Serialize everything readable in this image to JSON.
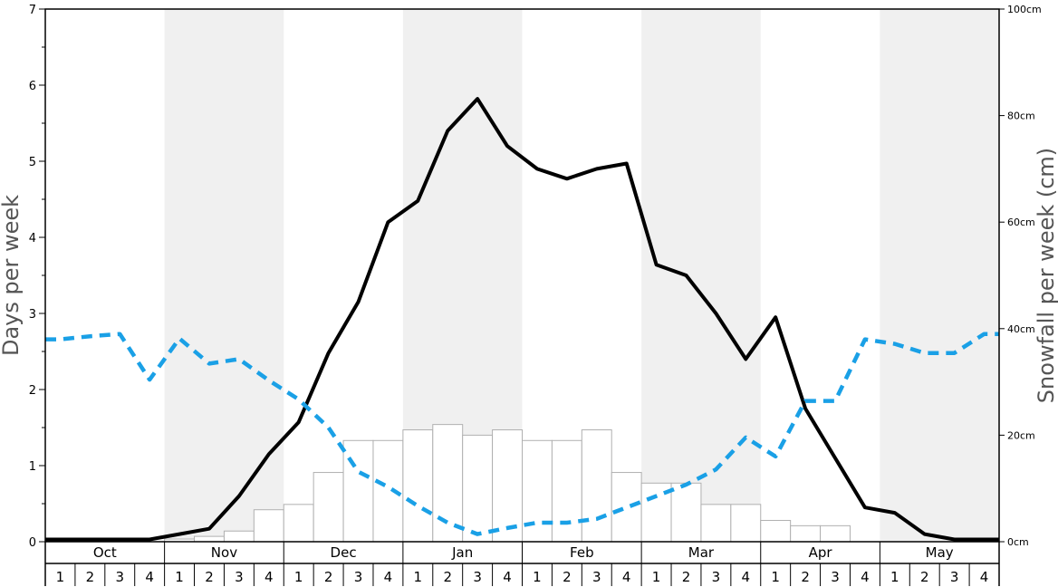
{
  "chart_data": {
    "type": "bar",
    "months": [
      "Oct",
      "Nov",
      "Dec",
      "Jan",
      "Feb",
      "Mar",
      "Apr",
      "May"
    ],
    "week_labels": [
      "1",
      "2",
      "3",
      "4"
    ],
    "ylabel": "Days per week",
    "y2label": "Snowfall per week (cm)",
    "ylim": [
      0,
      7
    ],
    "y2lim": [
      0,
      100
    ],
    "y_ticks": [
      "0",
      "1",
      "2",
      "3",
      "4",
      "5",
      "6",
      "7"
    ],
    "y2_ticks": [
      "0cm",
      "20cm",
      "40cm",
      "60cm",
      "80cm",
      "100cm"
    ],
    "shaded_months": [
      "Nov",
      "Jan",
      "Mar",
      "May"
    ],
    "grid": false,
    "series": [
      {
        "kind": "bar",
        "axis": "right",
        "color": "#ffffff",
        "stroke": "#b0b0b0",
        "values": [
          0,
          0,
          0,
          0,
          0.5,
          1,
          2,
          6,
          7,
          13,
          19,
          19,
          21,
          22,
          20,
          21,
          19,
          19,
          21,
          13,
          11,
          11,
          7,
          7,
          4,
          3,
          3,
          0,
          0,
          0,
          0,
          0
        ]
      },
      {
        "kind": "line",
        "axis": "left",
        "color": "#000000",
        "style": "solid",
        "values": [
          0.03,
          0.03,
          0.03,
          0.03,
          0.1,
          0.17,
          0.6,
          1.15,
          1.57,
          2.48,
          3.15,
          4.2,
          4.48,
          5.4,
          5.82,
          5.2,
          4.9,
          4.77,
          4.9,
          4.97,
          3.64,
          3.5,
          3.0,
          2.4,
          2.95,
          1.75,
          1.1,
          0.45,
          0.38,
          0.1,
          0.03,
          0.03
        ]
      },
      {
        "kind": "line",
        "axis": "left",
        "color": "#1aa0e6",
        "style": "dashed",
        "values": [
          2.66,
          2.7,
          2.73,
          2.13,
          2.67,
          2.34,
          2.4,
          2.12,
          1.87,
          1.5,
          0.92,
          0.72,
          0.47,
          0.25,
          0.1,
          0.18,
          0.25,
          0.25,
          0.3,
          0.45,
          0.6,
          0.75,
          0.95,
          1.37,
          1.12,
          1.85,
          1.85,
          2.66,
          2.6,
          2.48,
          2.48,
          2.73
        ]
      }
    ]
  }
}
